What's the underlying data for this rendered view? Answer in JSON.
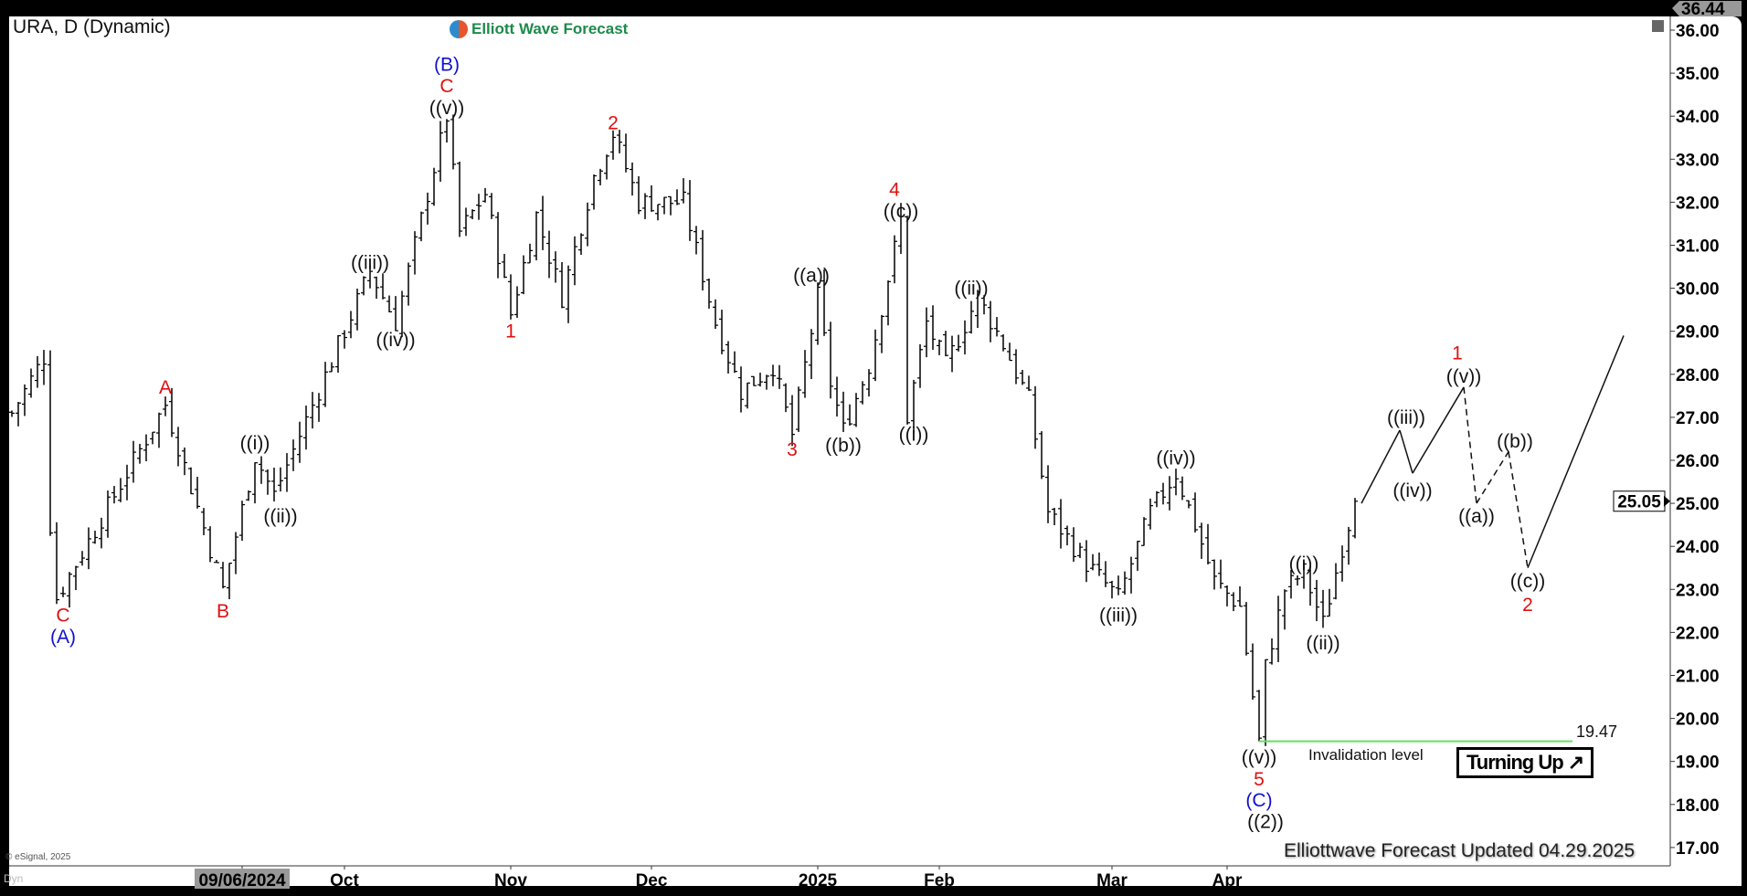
{
  "header": {
    "title": "URA, D (Dynamic)",
    "logo": "Elliott Wave Forecast"
  },
  "footer": {
    "updated": "Elliottwave Forecast Updated 04.29.2025",
    "copyright": "© eSignal, 2025",
    "dyn": "Dyn"
  },
  "badge": {
    "label": "Turning Up ↗"
  },
  "invalidation": {
    "label": "Invalidation level",
    "price": 19.47,
    "price_label": "19.47",
    "color": "#5ee35e"
  },
  "price_tags": {
    "high": "36.44",
    "last": "25.05"
  },
  "chart_data": {
    "type": "ohlc",
    "symbol": "URA",
    "interval": "D",
    "ylim": [
      16.5,
      36.3
    ],
    "y_ticks": [
      "17.00",
      "18.00",
      "19.00",
      "20.00",
      "21.00",
      "22.00",
      "23.00",
      "24.00",
      "25.00",
      "26.00",
      "27.00",
      "28.00",
      "29.00",
      "30.00",
      "31.00",
      "32.00",
      "33.00",
      "34.00",
      "35.00",
      "36.00"
    ],
    "x_ticks": [
      {
        "bar": 36,
        "label": "09/06/2024",
        "highlight": true
      },
      {
        "bar": 52,
        "label": "Oct"
      },
      {
        "bar": 78,
        "label": "Nov"
      },
      {
        "bar": 100,
        "label": "Dec"
      },
      {
        "bar": 126,
        "label": "2025"
      },
      {
        "bar": 145,
        "label": "Feb"
      },
      {
        "bar": 172,
        "label": "Mar"
      },
      {
        "bar": 190,
        "label": "Apr"
      }
    ],
    "price_path": [
      [
        0,
        27.1
      ],
      [
        5,
        28.4
      ],
      [
        6,
        24.5
      ],
      [
        7,
        22.8
      ],
      [
        24,
        27.3
      ],
      [
        33,
        23.0
      ],
      [
        38,
        26.1
      ],
      [
        41,
        25.2
      ],
      [
        56,
        30.4
      ],
      [
        60,
        29.2
      ],
      [
        68,
        34.0
      ],
      [
        70,
        31.3
      ],
      [
        74,
        32.2
      ],
      [
        78,
        29.4
      ],
      [
        82,
        31.7
      ],
      [
        86,
        29.8
      ],
      [
        91,
        32.6
      ],
      [
        94,
        33.6
      ],
      [
        98,
        32.0
      ],
      [
        105,
        32.0
      ],
      [
        110,
        29.2
      ],
      [
        114,
        27.6
      ],
      [
        119,
        28.2
      ],
      [
        122,
        26.6
      ],
      [
        126,
        29.8
      ],
      [
        128,
        27.8
      ],
      [
        130,
        26.7
      ],
      [
        134,
        28.2
      ],
      [
        139,
        31.6
      ],
      [
        140,
        27.0
      ],
      [
        143,
        29.2
      ],
      [
        146,
        28.2
      ],
      [
        151,
        29.8
      ],
      [
        155,
        28.7
      ],
      [
        159,
        27.4
      ],
      [
        162,
        24.8
      ],
      [
        168,
        23.6
      ],
      [
        173,
        22.8
      ],
      [
        178,
        24.8
      ],
      [
        182,
        25.7
      ],
      [
        185,
        24.5
      ],
      [
        188,
        23.2
      ],
      [
        192,
        22.6
      ],
      [
        195,
        19.47
      ],
      [
        196,
        21.2
      ],
      [
        199,
        23.0
      ],
      [
        202,
        23.4
      ],
      [
        205,
        22.2
      ],
      [
        208,
        24.0
      ],
      [
        210,
        25.05
      ]
    ],
    "forecast_path": [
      {
        "from": [
          211,
          25.0
        ],
        "to": [
          217,
          26.7
        ],
        "style": "solid"
      },
      {
        "from": [
          217,
          26.7
        ],
        "to": [
          219,
          25.7
        ],
        "style": "solid"
      },
      {
        "from": [
          219,
          25.7
        ],
        "to": [
          227,
          27.7
        ],
        "style": "solid"
      },
      {
        "from": [
          227,
          27.7
        ],
        "to": [
          229,
          25.0
        ],
        "style": "dashed"
      },
      {
        "from": [
          229,
          25.0
        ],
        "to": [
          234,
          26.2
        ],
        "style": "dashed"
      },
      {
        "from": [
          234,
          26.2
        ],
        "to": [
          237,
          23.5
        ],
        "style": "dashed"
      },
      {
        "from": [
          237,
          23.5
        ],
        "to": [
          252,
          28.9
        ],
        "style": "solid"
      }
    ],
    "wave_labels": [
      {
        "bar": 8,
        "price": 22.4,
        "text": "C",
        "color": "#e01010"
      },
      {
        "bar": 8,
        "price": 21.9,
        "text": "(A)",
        "color": "#1010d0"
      },
      {
        "bar": 24,
        "price": 27.7,
        "text": "A",
        "color": "#e01010"
      },
      {
        "bar": 33,
        "price": 22.5,
        "text": "B",
        "color": "#e01010"
      },
      {
        "bar": 38,
        "price": 26.4,
        "text": "((i))",
        "color": "#111"
      },
      {
        "bar": 42,
        "price": 24.7,
        "text": "((ii))",
        "color": "#111"
      },
      {
        "bar": 56,
        "price": 30.6,
        "text": "((iii))",
        "color": "#111"
      },
      {
        "bar": 60,
        "price": 28.8,
        "text": "((iv))",
        "color": "#111"
      },
      {
        "bar": 68,
        "price": 35.2,
        "text": "(B)",
        "color": "#1010d0"
      },
      {
        "bar": 68,
        "price": 34.7,
        "text": "C",
        "color": "#e01010"
      },
      {
        "bar": 68,
        "price": 34.2,
        "text": "((v))",
        "color": "#111"
      },
      {
        "bar": 78,
        "price": 29.0,
        "text": "1",
        "color": "#e01010"
      },
      {
        "bar": 94,
        "price": 33.85,
        "text": "2",
        "color": "#e01010"
      },
      {
        "bar": 122,
        "price": 26.25,
        "text": "3",
        "color": "#e01010"
      },
      {
        "bar": 125,
        "price": 30.3,
        "text": "((a))",
        "color": "#111"
      },
      {
        "bar": 130,
        "price": 26.35,
        "text": "((b))",
        "color": "#111"
      },
      {
        "bar": 138,
        "price": 32.3,
        "text": "4",
        "color": "#e01010"
      },
      {
        "bar": 139,
        "price": 31.8,
        "text": "((c))",
        "color": "#111"
      },
      {
        "bar": 141,
        "price": 26.6,
        "text": "((i))",
        "color": "#111"
      },
      {
        "bar": 150,
        "price": 30.0,
        "text": "((ii))",
        "color": "#111"
      },
      {
        "bar": 173,
        "price": 22.4,
        "text": "((iii))",
        "color": "#111"
      },
      {
        "bar": 182,
        "price": 26.05,
        "text": "((iv))",
        "color": "#111"
      },
      {
        "bar": 202,
        "price": 23.6,
        "text": "((i))",
        "color": "#111"
      },
      {
        "bar": 205,
        "price": 21.75,
        "text": "((ii))",
        "color": "#111"
      },
      {
        "bar": 195,
        "price": 19.1,
        "text": "((v))",
        "color": "#111"
      },
      {
        "bar": 195,
        "price": 18.65,
        "text": "5",
        "color": "#e01010"
      },
      {
        "bar": 195,
        "price": 18.1,
        "text": "(C)",
        "color": "#1010d0"
      },
      {
        "bar": 196,
        "price": 17.6,
        "text": "((2))",
        "color": "#111"
      },
      {
        "bar": 218,
        "price": 27.0,
        "text": "((iii))",
        "color": "#111"
      },
      {
        "bar": 219,
        "price": 25.3,
        "text": "((iv))",
        "color": "#111"
      },
      {
        "bar": 226,
        "price": 28.5,
        "text": "1",
        "color": "#e01010"
      },
      {
        "bar": 227,
        "price": 27.95,
        "text": "((v))",
        "color": "#111"
      },
      {
        "bar": 229,
        "price": 24.7,
        "text": "((a))",
        "color": "#111"
      },
      {
        "bar": 235,
        "price": 26.45,
        "text": "((b))",
        "color": "#111"
      },
      {
        "bar": 237,
        "price": 23.2,
        "text": "((c))",
        "color": "#111"
      },
      {
        "bar": 237,
        "price": 22.65,
        "text": "2",
        "color": "#e01010"
      }
    ]
  }
}
